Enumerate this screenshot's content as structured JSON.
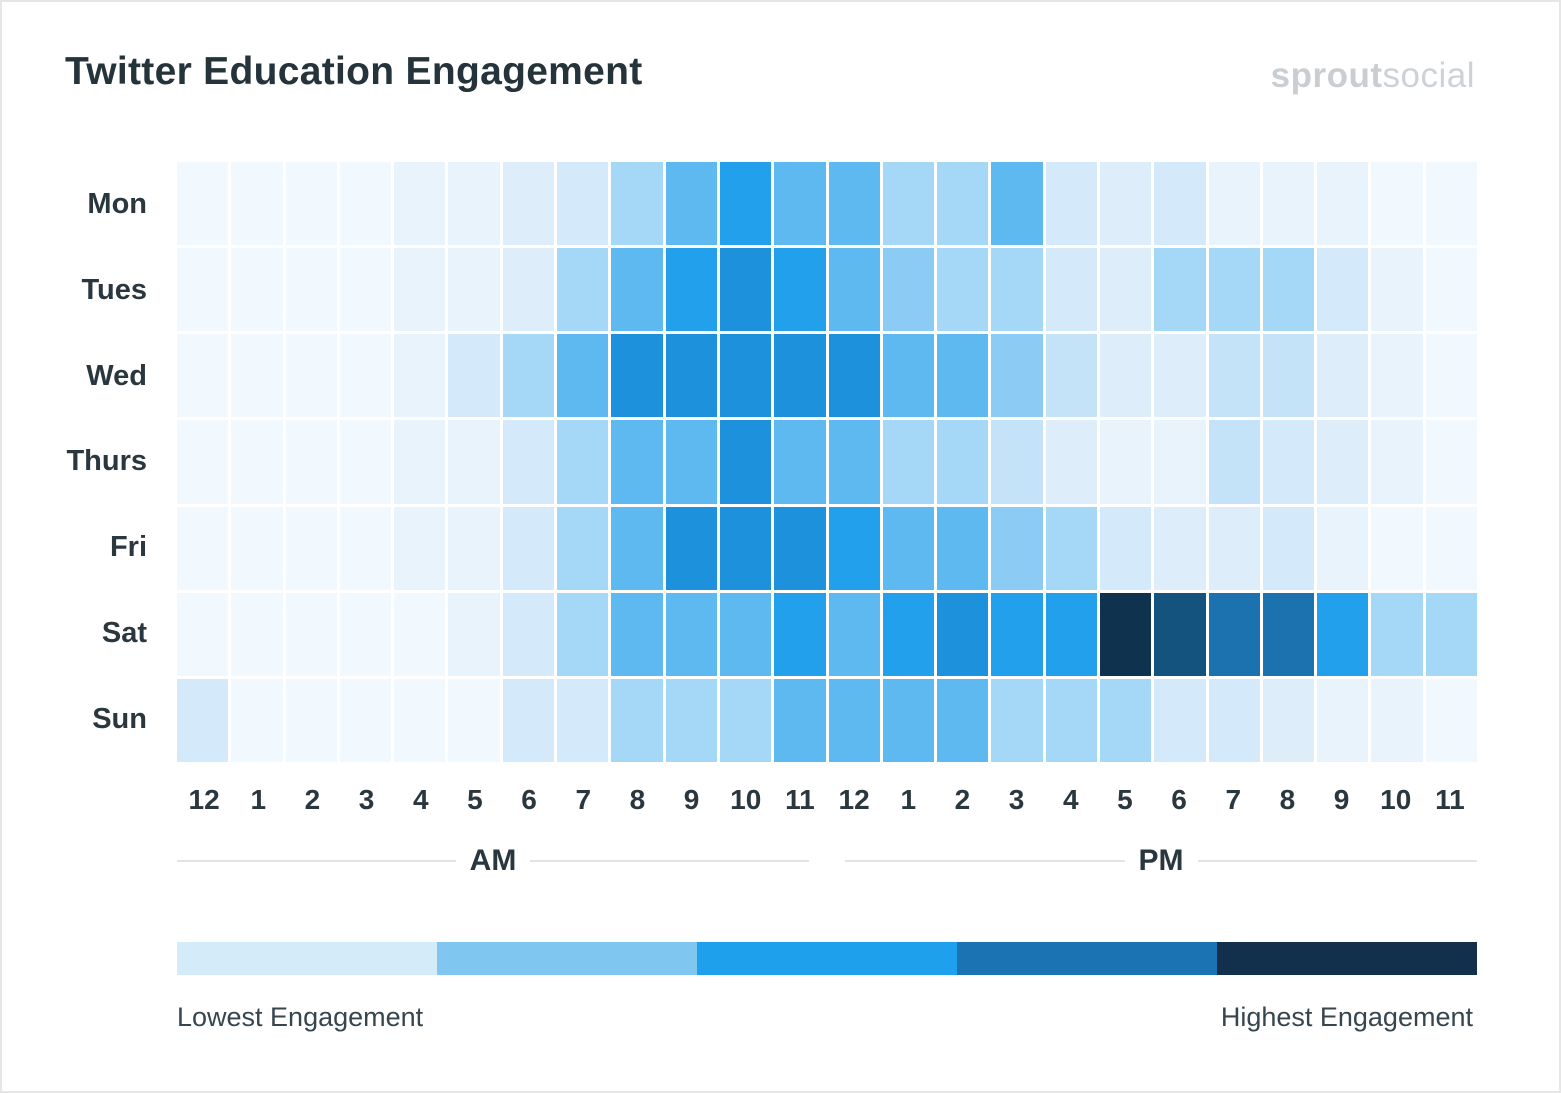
{
  "header": {
    "title": "Twitter Education Engagement",
    "logo_bold": "sprout",
    "logo_light": "social"
  },
  "chart_data": {
    "type": "heatmap",
    "title": "Twitter Education Engagement",
    "x_axis": {
      "hours": [
        "12",
        "1",
        "2",
        "3",
        "4",
        "5",
        "6",
        "7",
        "8",
        "9",
        "10",
        "11",
        "12",
        "1",
        "2",
        "3",
        "4",
        "5",
        "6",
        "7",
        "8",
        "9",
        "10",
        "11"
      ],
      "period_labels": [
        "AM",
        "PM"
      ]
    },
    "y_axis": {
      "days": [
        "Mon",
        "Tues",
        "Wed",
        "Thurs",
        "Fri",
        "Sat",
        "Sun"
      ]
    },
    "scale": {
      "levels": 13,
      "low_label": "Lowest Engagement",
      "high_label": "Highest Engagement",
      "palette": [
        "#F1F9FE",
        "#E8F3FC",
        "#DDEEFA",
        "#D4E9F9",
        "#C4E2F8",
        "#A5D8F6",
        "#8CCBF3",
        "#5FB9F1",
        "#22A0EC",
        "#1E91DC",
        "#1C72AF",
        "#14537D",
        "#0F334E"
      ]
    },
    "values": [
      [
        1,
        1,
        1,
        1,
        2,
        2,
        3,
        4,
        6,
        8,
        9,
        8,
        8,
        6,
        6,
        8,
        4,
        3,
        4,
        2,
        2,
        2,
        1,
        1
      ],
      [
        1,
        1,
        1,
        1,
        2,
        2,
        3,
        6,
        8,
        9,
        10,
        9,
        8,
        7,
        6,
        6,
        4,
        3,
        6,
        6,
        6,
        4,
        2,
        1
      ],
      [
        1,
        1,
        1,
        1,
        2,
        4,
        6,
        8,
        10,
        10,
        10,
        10,
        10,
        8,
        8,
        7,
        5,
        3,
        3,
        5,
        5,
        3,
        2,
        1
      ],
      [
        1,
        1,
        1,
        1,
        2,
        2,
        4,
        6,
        8,
        8,
        10,
        8,
        8,
        6,
        6,
        5,
        3,
        2,
        2,
        5,
        4,
        3,
        2,
        1
      ],
      [
        1,
        1,
        1,
        1,
        2,
        2,
        4,
        6,
        8,
        10,
        10,
        10,
        9,
        8,
        8,
        7,
        6,
        4,
        3,
        3,
        4,
        2,
        1,
        1
      ],
      [
        1,
        1,
        1,
        1,
        1,
        2,
        4,
        6,
        8,
        8,
        8,
        9,
        8,
        9,
        10,
        9,
        9,
        13,
        12,
        11,
        11,
        9,
        6,
        6
      ],
      [
        4,
        1,
        1,
        1,
        1,
        1,
        4,
        4,
        6,
        6,
        6,
        8,
        8,
        8,
        8,
        6,
        6,
        6,
        4,
        4,
        3,
        2,
        2,
        1
      ]
    ]
  },
  "legend": {
    "segments": [
      "#D4ECFA",
      "#7FC6F0",
      "#1FA0EC",
      "#1C73B4",
      "#12304B"
    ],
    "low_label": "Lowest Engagement",
    "high_label": "Highest Engagement"
  }
}
